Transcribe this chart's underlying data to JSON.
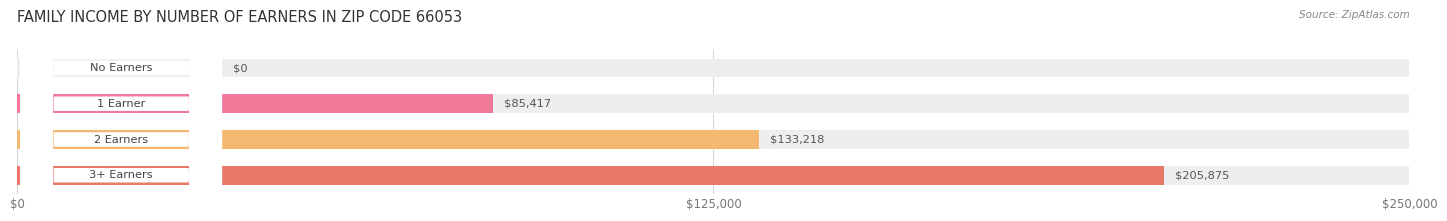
{
  "title": "FAMILY INCOME BY NUMBER OF EARNERS IN ZIP CODE 66053",
  "source": "Source: ZipAtlas.com",
  "categories": [
    "No Earners",
    "1 Earner",
    "2 Earners",
    "3+ Earners"
  ],
  "values": [
    0,
    85417,
    133218,
    205875
  ],
  "bar_colors": [
    "#a8a8cc",
    "#f07898",
    "#f5b870",
    "#e87868"
  ],
  "bar_bg_color": "#eeeeee",
  "label_colors": [
    "#555555",
    "#555555",
    "#555555",
    "#ffffff"
  ],
  "xlim": [
    0,
    250000
  ],
  "xticks": [
    0,
    125000,
    250000
  ],
  "xtick_labels": [
    "$0",
    "$125,000",
    "$250,000"
  ],
  "background_color": "#ffffff",
  "title_fontsize": 10.5,
  "bar_height": 0.52,
  "value_labels": [
    "$0",
    "$85,417",
    "$133,218",
    "$205,875"
  ]
}
